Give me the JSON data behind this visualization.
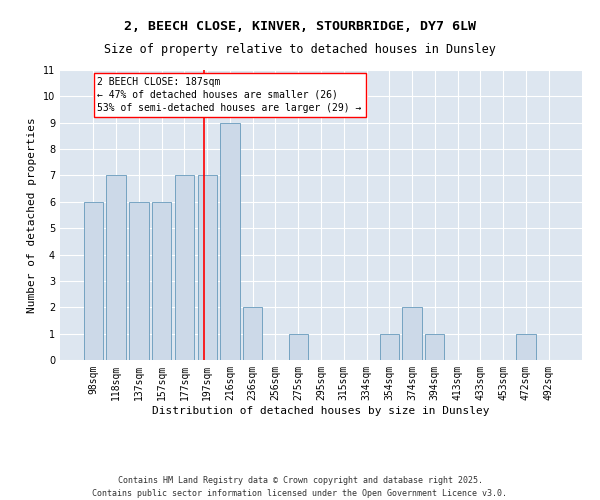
{
  "title_line1": "2, BEECH CLOSE, KINVER, STOURBRIDGE, DY7 6LW",
  "title_line2": "Size of property relative to detached houses in Dunsley",
  "xlabel": "Distribution of detached houses by size in Dunsley",
  "ylabel": "Number of detached properties",
  "categories": [
    "98sqm",
    "118sqm",
    "137sqm",
    "157sqm",
    "177sqm",
    "197sqm",
    "216sqm",
    "236sqm",
    "256sqm",
    "275sqm",
    "295sqm",
    "315sqm",
    "334sqm",
    "354sqm",
    "374sqm",
    "394sqm",
    "413sqm",
    "433sqm",
    "453sqm",
    "472sqm",
    "492sqm"
  ],
  "values": [
    6,
    7,
    6,
    6,
    7,
    7,
    9,
    2,
    0,
    1,
    0,
    0,
    0,
    1,
    2,
    1,
    0,
    0,
    0,
    1,
    0
  ],
  "bar_color": "#ccd9e8",
  "bar_edge_color": "#6699bb",
  "background_color": "#dde6f0",
  "ylim": [
    0,
    11
  ],
  "yticks": [
    0,
    1,
    2,
    3,
    4,
    5,
    6,
    7,
    8,
    9,
    10,
    11
  ],
  "red_line_x": 4.85,
  "annotation_text": "2 BEECH CLOSE: 187sqm\n← 47% of detached houses are smaller (26)\n53% of semi-detached houses are larger (29) →",
  "footer_text": "Contains HM Land Registry data © Crown copyright and database right 2025.\nContains public sector information licensed under the Open Government Licence v3.0.",
  "grid_color": "#ffffff",
  "title_fontsize": 9.5,
  "subtitle_fontsize": 8.5,
  "axis_label_fontsize": 8,
  "tick_fontsize": 7,
  "annotation_fontsize": 7,
  "footer_fontsize": 6
}
